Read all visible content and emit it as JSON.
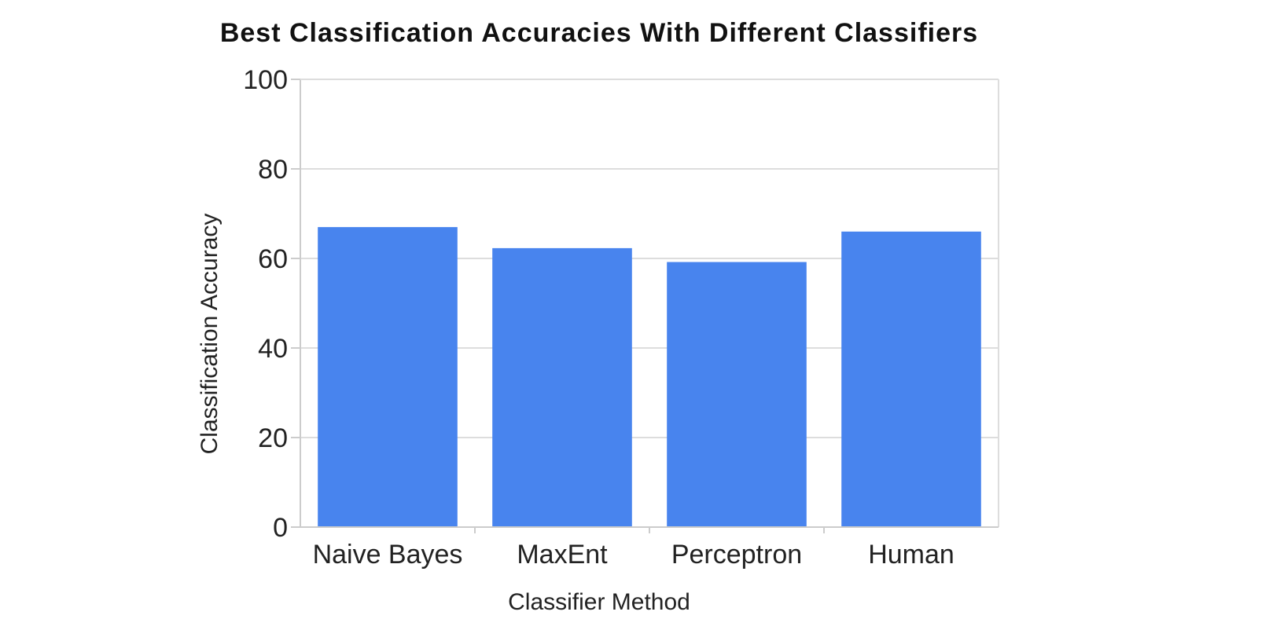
{
  "chart_data": {
    "type": "bar",
    "title": "Best Classification Accuracies With Different Classifiers",
    "xlabel": "Classifier Method",
    "ylabel": "Classification Accuracy",
    "categories": [
      "Naive Bayes",
      "MaxEnt",
      "Perceptron",
      "Human"
    ],
    "values": [
      67,
      62.3,
      59.2,
      66
    ],
    "ylim": [
      0,
      100
    ],
    "yticks": [
      0,
      20,
      40,
      60,
      80,
      100
    ],
    "grid": true,
    "legend": "none",
    "colors": {
      "bar": "#4884EE",
      "grid": "#DDDDDD",
      "axis": "#CCCCCC",
      "text": "#222222"
    }
  }
}
